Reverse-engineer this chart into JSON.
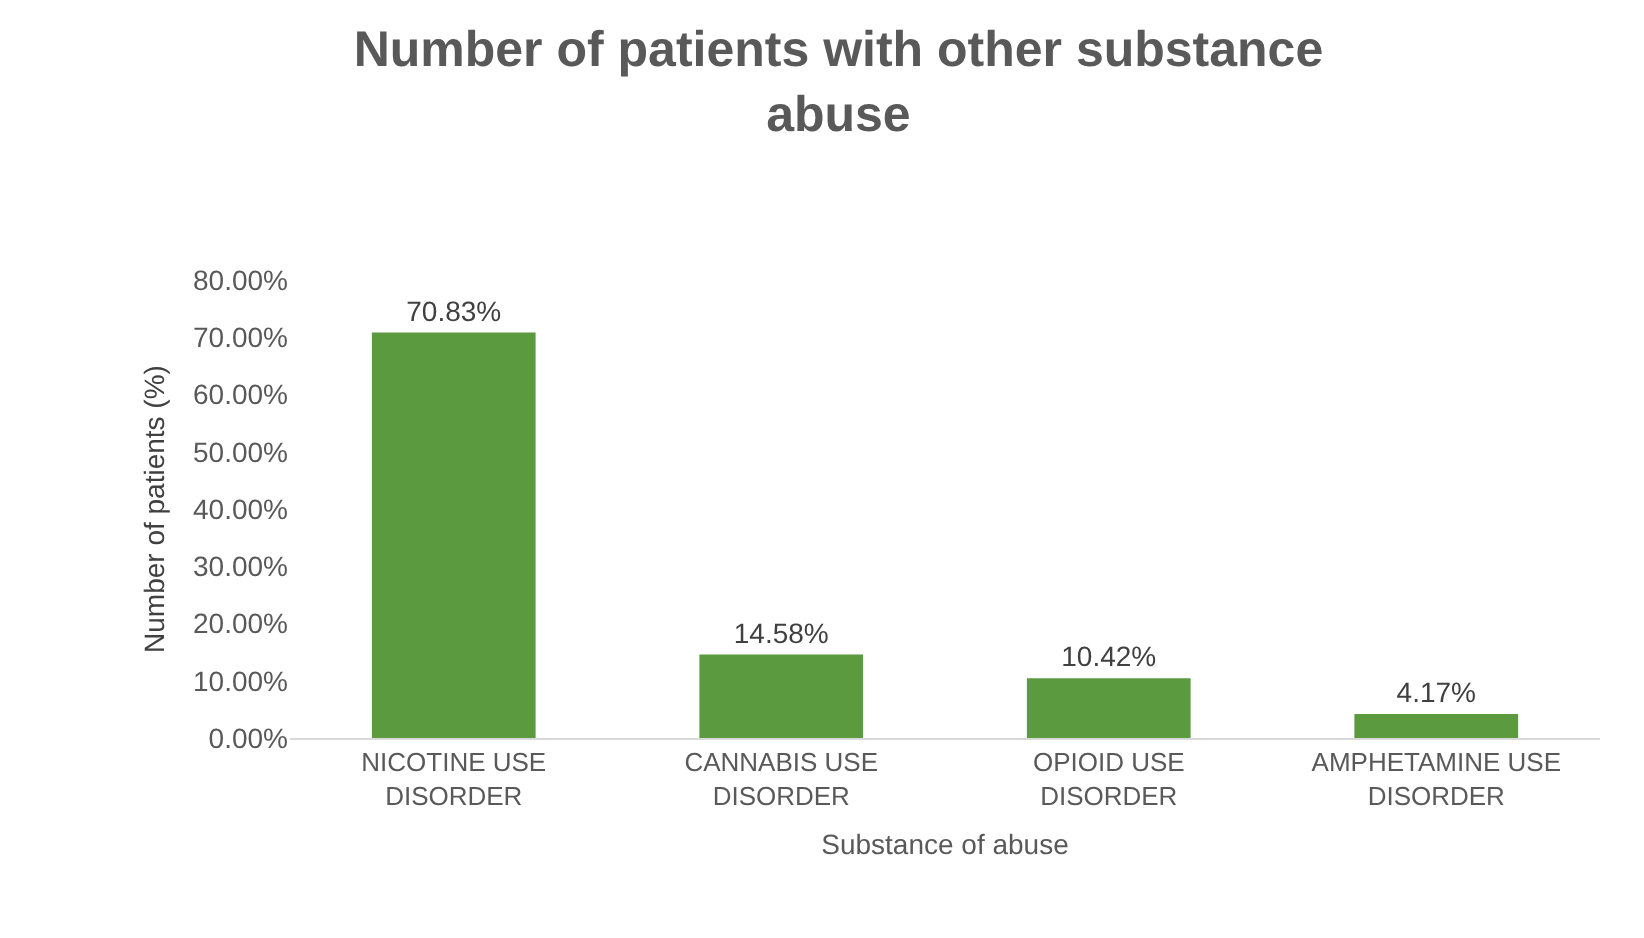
{
  "chart_data": {
    "type": "bar",
    "title": "Number of patients with other substance abuse",
    "xlabel": "Substance of abuse",
    "ylabel": "Number of patients (%)",
    "categories": [
      "NICOTINE USE DISORDER",
      "CANNABIS USE DISORDER",
      "OPIOID USE DISORDER",
      "AMPHETAMINE USE DISORDER"
    ],
    "values": [
      70.83,
      14.58,
      10.42,
      4.17
    ],
    "value_labels": [
      "70.83%",
      "14.58%",
      "10.42%",
      "4.17%"
    ],
    "color": "#5b9a3f",
    "ylim": [
      0,
      80
    ],
    "yticks": [
      {
        "value": 0,
        "label": "0.00%"
      },
      {
        "value": 10,
        "label": "10.00%"
      },
      {
        "value": 20,
        "label": "20.00%"
      },
      {
        "value": 30,
        "label": "30.00%"
      },
      {
        "value": 40,
        "label": "40.00%"
      },
      {
        "value": 50,
        "label": "50.00%"
      },
      {
        "value": 60,
        "label": "60.00%"
      },
      {
        "value": 70,
        "label": "70.00%"
      },
      {
        "value": 80,
        "label": "80.00%"
      }
    ],
    "grid": false
  }
}
